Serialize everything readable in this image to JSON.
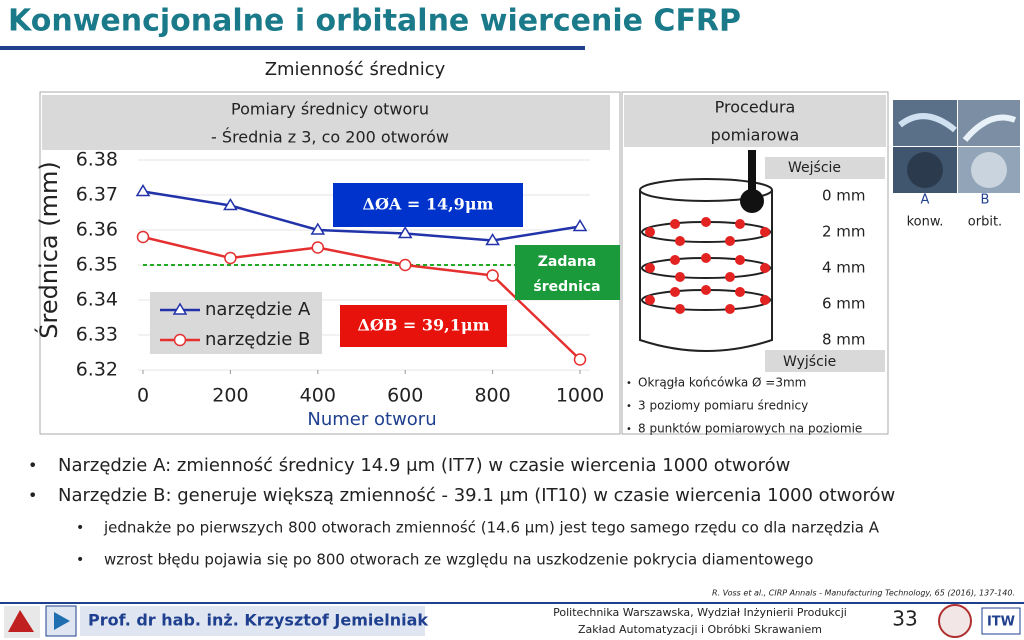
{
  "header": {
    "title": "Konwencjonalne i orbitalne wiercenie CFRP",
    "subtitle": "Zmienność średnicy"
  },
  "chart_data": {
    "type": "line",
    "title": [
      "Pomiary średnicy otworu",
      "- Średnia z 3, co 200 otworów"
    ],
    "y_label": "Średnica (mm)",
    "x_label": "Numer otworu",
    "x": [
      0,
      200,
      400,
      600,
      800,
      1000
    ],
    "series": [
      {
        "name": "narzędzie A",
        "color": "#2233aa",
        "marker": "triangle",
        "values": [
          6.371,
          6.367,
          6.36,
          6.359,
          6.357,
          6.361
        ]
      },
      {
        "name": "narzędzie B",
        "color": "#e53030",
        "marker": "circle",
        "values": [
          6.358,
          6.352,
          6.355,
          6.35,
          6.347,
          6.323
        ]
      }
    ],
    "xlim": [
      0,
      1000
    ],
    "xticks": [
      0,
      200,
      400,
      600,
      800,
      1000
    ],
    "ylim": [
      6.32,
      6.38
    ],
    "yticks": [
      6.32,
      6.33,
      6.34,
      6.35,
      6.36,
      6.37,
      6.38
    ],
    "reference_line": {
      "value": 6.35,
      "color": "#22aa22",
      "label": [
        "Zadana",
        "średnica"
      ]
    },
    "annotations": [
      "ΔØA = 14,9μm",
      "ΔØB = 39,1μm"
    ]
  },
  "procedure": {
    "title": [
      "Procedura",
      "pomiarowa"
    ],
    "entry": "Wejście",
    "exit": "Wyjście",
    "levels": [
      "0 mm",
      "2 mm",
      "4 mm",
      "6 mm",
      "8 mm"
    ],
    "bullets": [
      "Okrągła końcówka Ø =3mm",
      "3 poziomy pomiaru średnicy",
      "8 punktów pomiarowych na poziomie"
    ]
  },
  "tools": [
    {
      "letter": "A",
      "label": "konw."
    },
    {
      "letter": "B",
      "label": "orbit."
    }
  ],
  "bullets": [
    "Narzędzie A: zmienność średnicy 14.9 μm (IT7) w czasie wiercenia 1000 otworów",
    "Narzędzie B: generuje większą zmienność - 39.1 μm (IT10) w czasie wiercenia 1000 otworów"
  ],
  "sub_bullets": [
    "jednakże po pierwszych 800 otworach zmienność (14.6 μm) jest tego samego rzędu co dla narzędzia A",
    "wzrost błędu pojawia się po 800 otworach ze względu na uszkodzenie pokrycia diamentowego"
  ],
  "citation": "R. Voss et al., CIRP Annals - Manufacturing Technology, 65 (2016), 137-140.",
  "footer": {
    "author": "Prof. dr hab. inż. Krzysztof Jemielniak",
    "institution": [
      "Politechnika Warszawska, Wydział Inżynierii Produkcji",
      "Zakład Automatyzacji i Obróbki Skrawaniem"
    ],
    "page": "33"
  }
}
